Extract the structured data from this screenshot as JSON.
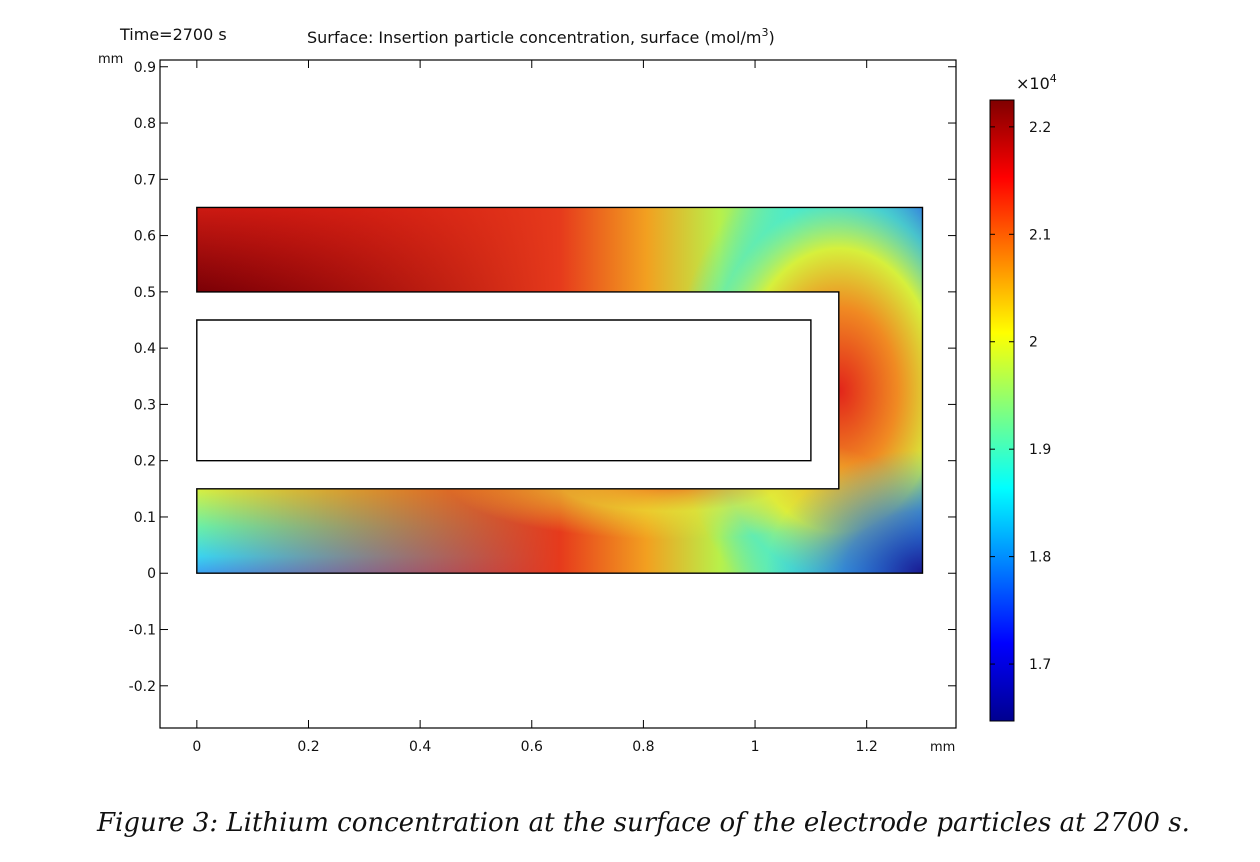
{
  "chart_data": {
    "type": "heatmap",
    "time_label": "Time=2700 s",
    "title": "Surface: Insertion particle concentration, surface (mol/m",
    "title_unit_exponent": "3",
    "title_suffix": ")",
    "x_unit": "mm",
    "y_unit": "mm",
    "xlim": [
      -0.066,
      1.36
    ],
    "ylim": [
      -0.275,
      0.912
    ],
    "x_ticks": [
      0,
      0.2,
      0.4,
      0.6,
      0.8,
      1,
      1.2
    ],
    "x_tick_labels": [
      "0",
      "0.2",
      "0.4",
      "0.6",
      "0.8",
      "1",
      "1.2"
    ],
    "y_ticks": [
      0.9,
      0.8,
      0.7,
      0.6,
      0.5,
      0.4,
      0.3,
      0.2,
      0.1,
      0,
      -0.1,
      -0.2
    ],
    "y_tick_labels": [
      "0.9",
      "0.8",
      "0.7",
      "0.6",
      "0.5",
      "0.4",
      "0.3",
      "0.2",
      "0.1",
      "0",
      "-0.1",
      "-0.2"
    ],
    "domain_outline": [
      [
        0,
        0
      ],
      [
        1.3,
        0
      ],
      [
        1.3,
        0.65
      ],
      [
        0,
        0.65
      ],
      [
        0,
        0.5
      ],
      [
        1.15,
        0.5
      ],
      [
        1.15,
        0.15
      ],
      [
        0,
        0.15
      ]
    ],
    "inner_rect": [
      [
        0,
        0.2
      ],
      [
        1.1,
        0.2
      ],
      [
        1.1,
        0.45
      ],
      [
        0,
        0.45
      ]
    ],
    "colorbar": {
      "multiplier": "×10",
      "multiplier_exponent": "4",
      "range": [
        1.647,
        2.225
      ],
      "ticks": [
        2.2,
        2.1,
        2,
        1.9,
        1.8,
        1.7
      ],
      "tick_labels": [
        "2.2",
        "2.1",
        "2",
        "1.9",
        "1.8",
        "1.7"
      ],
      "colormap": "jet"
    }
  },
  "caption": "Figure 3: Lithium concentration at the surface of the electrode particles at 2700 s."
}
